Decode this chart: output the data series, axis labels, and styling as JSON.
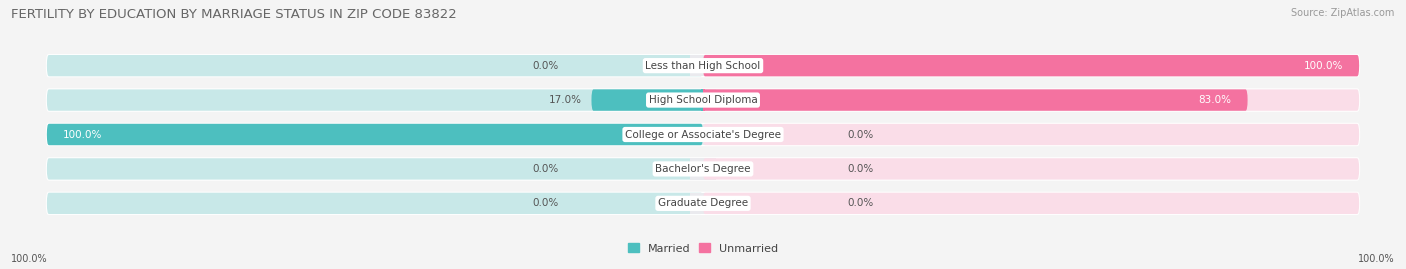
{
  "title": "FERTILITY BY EDUCATION BY MARRIAGE STATUS IN ZIP CODE 83822",
  "source": "Source: ZipAtlas.com",
  "categories": [
    "Less than High School",
    "High School Diploma",
    "College or Associate's Degree",
    "Bachelor's Degree",
    "Graduate Degree"
  ],
  "married_values": [
    0.0,
    17.0,
    100.0,
    0.0,
    0.0
  ],
  "unmarried_values": [
    100.0,
    83.0,
    0.0,
    0.0,
    0.0
  ],
  "married_color": "#4DBFBF",
  "unmarried_color": "#F472A0",
  "married_light_color": "#C8E8E8",
  "unmarried_light_color": "#FADDE8",
  "row_bg_color": "#EAEAEE",
  "bg_color": "#F4F4F4",
  "title_color": "#666666",
  "source_color": "#999999",
  "label_color": "#444444",
  "value_color_dark": "#555555",
  "value_color_light": "#FFFFFF",
  "title_fontsize": 9.5,
  "source_fontsize": 7,
  "label_fontsize": 7.5,
  "value_fontsize": 7.5,
  "axis_label_fontsize": 7,
  "legend_fontsize": 8,
  "x_left_label": "100.0%",
  "x_right_label": "100.0%"
}
